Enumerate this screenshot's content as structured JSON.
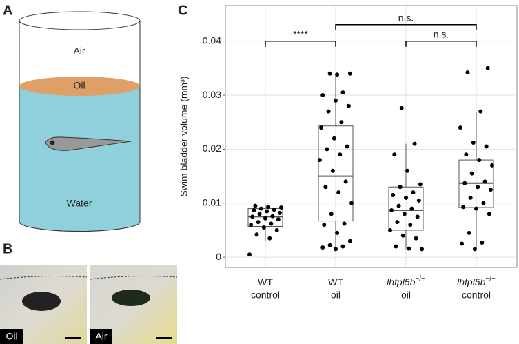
{
  "panels": {
    "a": "A",
    "b": "B",
    "c": "C"
  },
  "diagram": {
    "air": "Air",
    "oil": "Oil",
    "water": "Water"
  },
  "photos": [
    {
      "label": "Oil"
    },
    {
      "label": "Air"
    }
  ],
  "chart_data": {
    "type": "box",
    "ylabel": "Swim bladder volume (mm³)",
    "categories": [
      {
        "genotype": "WT",
        "condition": "control"
      },
      {
        "genotype": "WT",
        "condition": "oil"
      },
      {
        "genotype": "lhfpl5b",
        "superscript": "−/−",
        "condition": "oil"
      },
      {
        "genotype": "lhfpl5b",
        "superscript": "−/−",
        "condition": "control"
      }
    ],
    "boxes": [
      {
        "whisker_low": 0.0031,
        "q1": 0.0057,
        "median": 0.0075,
        "q3": 0.009,
        "whisker_high": 0.0096
      },
      {
        "whisker_low": 0.0015,
        "q1": 0.0067,
        "median": 0.015,
        "q3": 0.0243,
        "whisker_high": 0.034
      },
      {
        "whisker_low": 0.0015,
        "q1": 0.005,
        "median": 0.0087,
        "q3": 0.013,
        "whisker_high": 0.021
      },
      {
        "whisker_low": 0.0015,
        "q1": 0.0092,
        "median": 0.0137,
        "q3": 0.018,
        "whisker_high": 0.027
      }
    ],
    "points": [
      [
        0.0005,
        0.0035,
        0.0042,
        0.005,
        0.0055,
        0.006,
        0.0062,
        0.0065,
        0.007,
        0.0072,
        0.0075,
        0.0076,
        0.008,
        0.0082,
        0.0085,
        0.0087,
        0.0088,
        0.009,
        0.0092,
        0.0093,
        0.0095
      ],
      [
        0.0015,
        0.0018,
        0.002,
        0.0022,
        0.003,
        0.0045,
        0.006,
        0.0062,
        0.008,
        0.01,
        0.012,
        0.013,
        0.014,
        0.016,
        0.018,
        0.019,
        0.02,
        0.0205,
        0.022,
        0.024,
        0.025,
        0.027,
        0.028,
        0.029,
        0.03,
        0.0305,
        0.034,
        0.034,
        0.0338
      ],
      [
        0.0015,
        0.0016,
        0.002,
        0.0035,
        0.004,
        0.005,
        0.006,
        0.0065,
        0.0075,
        0.008,
        0.0087,
        0.009,
        0.0095,
        0.0105,
        0.011,
        0.0115,
        0.012,
        0.013,
        0.0135,
        0.016,
        0.019,
        0.021,
        0.0276
      ],
      [
        0.0015,
        0.0025,
        0.0027,
        0.0045,
        0.008,
        0.009,
        0.0093,
        0.01,
        0.011,
        0.0125,
        0.013,
        0.0137,
        0.014,
        0.0155,
        0.017,
        0.018,
        0.019,
        0.0205,
        0.0212,
        0.024,
        0.027,
        0.0342,
        0.035
      ]
    ],
    "comparisons": [
      {
        "from": 0,
        "to": 1,
        "label": "****"
      },
      {
        "from": 1,
        "to": 3,
        "label": "n.s."
      },
      {
        "from": 2,
        "to": 3,
        "label": "n.s."
      }
    ],
    "ylim": [
      -0.0019,
      0.0466
    ],
    "yticks": [
      0,
      0.01,
      0.02,
      0.03,
      0.04
    ],
    "grid": true,
    "color": "#000000"
  }
}
